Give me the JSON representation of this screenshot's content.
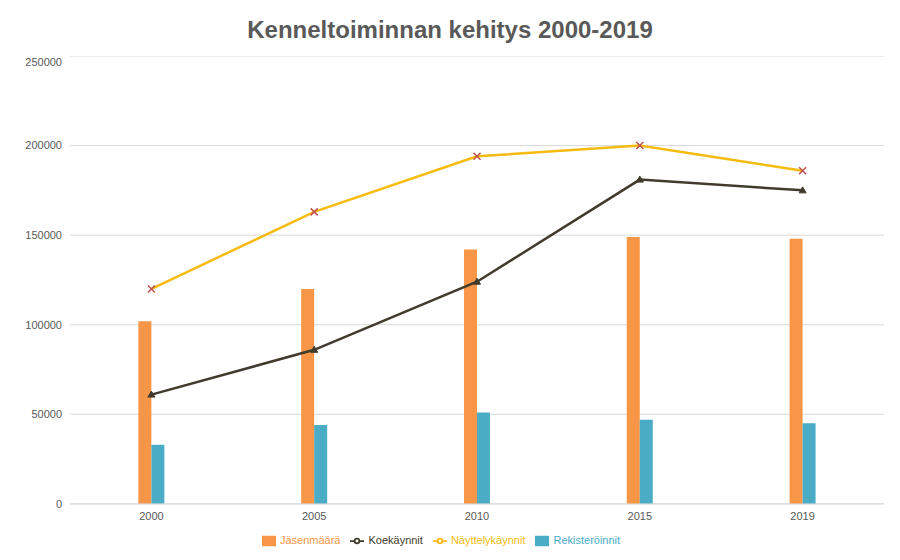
{
  "chart_data": {
    "type": "bar",
    "title": "Kenneltoiminnan kehitys 2000-2019",
    "categories": [
      "2000",
      "2005",
      "2010",
      "2015",
      "2019"
    ],
    "series": [
      {
        "name": "Jäsenmäärä",
        "type": "bar",
        "color": "#f79646",
        "values": [
          102000,
          120000,
          142000,
          149000,
          148000
        ]
      },
      {
        "name": "Rekisteröinnit",
        "type": "bar",
        "color": "#4bacc6",
        "values": [
          33000,
          44000,
          51000,
          47000,
          45000
        ]
      },
      {
        "name": "Koekäynnit",
        "type": "line",
        "color": "#403b2c",
        "marker": "triangle",
        "values": [
          61000,
          86000,
          124000,
          181000,
          175000
        ]
      },
      {
        "name": "Näyttelykäynnit",
        "type": "line",
        "color": "#f5bb10",
        "marker": "x",
        "values": [
          120000,
          163000,
          194000,
          200000,
          186000
        ]
      }
    ],
    "ylim": [
      0,
      250000
    ],
    "yticks": [
      0,
      50000,
      100000,
      150000,
      200000,
      250000
    ],
    "grid": true,
    "legend": "bottom"
  }
}
